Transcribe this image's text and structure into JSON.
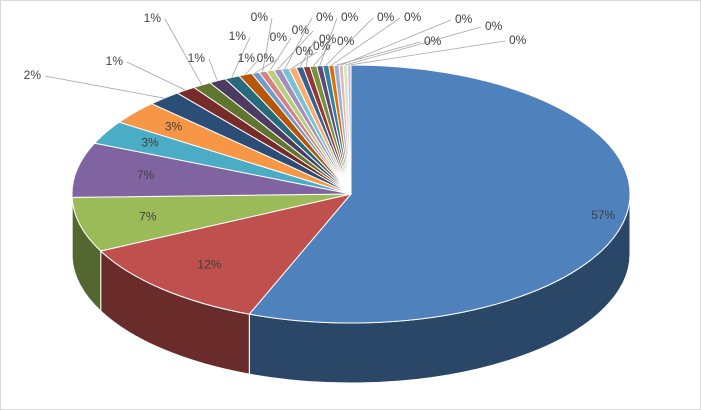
{
  "chart_data": {
    "type": "pie",
    "style": "3d-exploded-off",
    "title": "",
    "legend": "none",
    "slices": [
      {
        "label": "57%",
        "value": 57.0,
        "color": "#4f81bd"
      },
      {
        "label": "12%",
        "value": 12.0,
        "color": "#c0504d"
      },
      {
        "label": "7%",
        "value": 7.0,
        "color": "#9bbb59"
      },
      {
        "label": "7%",
        "value": 7.0,
        "color": "#8064a2"
      },
      {
        "label": "3%",
        "value": 3.0,
        "color": "#4bacc6"
      },
      {
        "label": "3%",
        "value": 3.0,
        "color": "#f79646"
      },
      {
        "label": "2%",
        "value": 2.0,
        "color": "#2c4d75"
      },
      {
        "label": "1%",
        "value": 1.2,
        "color": "#772c2a"
      },
      {
        "label": "1%",
        "value": 1.1,
        "color": "#5f7530"
      },
      {
        "label": "1%",
        "value": 1.0,
        "color": "#4d3b62"
      },
      {
        "label": "1%",
        "value": 0.9,
        "color": "#276a7c"
      },
      {
        "label": "1%",
        "value": 0.8,
        "color": "#b65708"
      },
      {
        "label": "0%",
        "value": 0.45,
        "color": "#729aca"
      },
      {
        "label": "0%",
        "value": 0.45,
        "color": "#d7827f"
      },
      {
        "label": "0%",
        "value": 0.45,
        "color": "#b5ce7f"
      },
      {
        "label": "0%",
        "value": 0.45,
        "color": "#a28fbb"
      },
      {
        "label": "0%",
        "value": 0.45,
        "color": "#79c0d4"
      },
      {
        "label": "0%",
        "value": 0.45,
        "color": "#f9ad6c"
      },
      {
        "label": "0%",
        "value": 0.4,
        "color": "#3a5f8e"
      },
      {
        "label": "0%",
        "value": 0.4,
        "color": "#943734"
      },
      {
        "label": "0%",
        "value": 0.4,
        "color": "#76923c"
      },
      {
        "label": "0%",
        "value": 0.35,
        "color": "#5f497a"
      },
      {
        "label": "0%",
        "value": 0.35,
        "color": "#31849b"
      },
      {
        "label": "0%",
        "value": 0.3,
        "color": "#e36c09"
      },
      {
        "label": "0%",
        "value": 0.3,
        "color": "#95b3d7"
      },
      {
        "label": "0%",
        "value": 0.25,
        "color": "#e6b9b8"
      },
      {
        "label": "0%",
        "value": 0.25,
        "color": "#d7e4bd"
      },
      {
        "label": "0%",
        "value": 0.2,
        "color": "#ccc1da"
      }
    ]
  }
}
